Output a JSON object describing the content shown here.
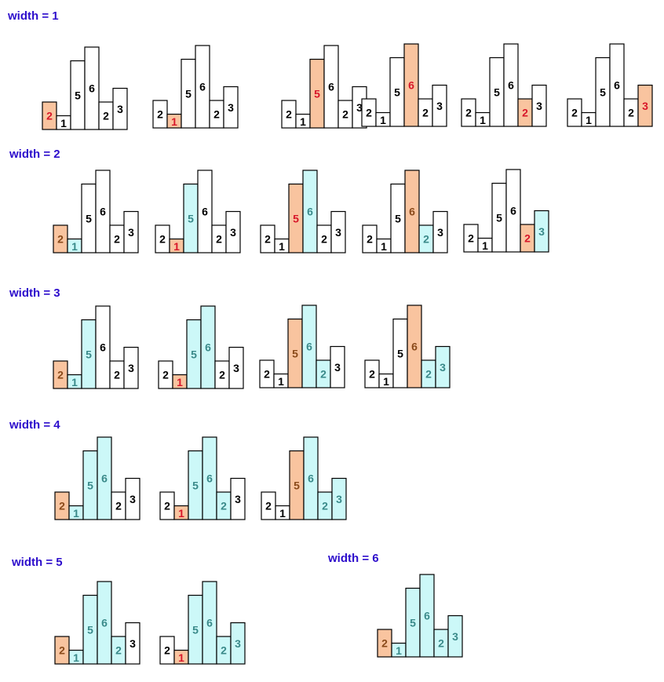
{
  "heights": [
    2,
    1,
    5,
    6,
    2,
    3
  ],
  "colors": {
    "label": "#2d0ecc",
    "outline": "#000000",
    "plain_fill": "#ffffff",
    "plain_text": "#000000",
    "min_fill": "#f9c49f",
    "window_fill": "#ccf8f8",
    "window_text": "#3a8a8a",
    "min_text_red": "#d8172a",
    "min_text_brown": "#8a4a1a"
  },
  "rows": [
    {
      "label": "width = 1",
      "diagrams": [
        {
          "window": [
            0
          ],
          "min": 0,
          "min_text": "red"
        },
        {
          "window": [
            1
          ],
          "min": 1,
          "min_text": "red"
        },
        {
          "window": [
            2
          ],
          "min": 2,
          "min_text": "red"
        },
        {
          "window": [
            3
          ],
          "min": 3,
          "min_text": "red"
        },
        {
          "window": [
            4
          ],
          "min": 4,
          "min_text": "red"
        },
        {
          "window": [
            5
          ],
          "min": 5,
          "min_text": "red"
        }
      ]
    },
    {
      "label": "width = 2",
      "diagrams": [
        {
          "window": [
            0,
            1
          ],
          "min": 0,
          "min_text": "brown"
        },
        {
          "window": [
            1,
            2
          ],
          "min": 1,
          "min_text": "red"
        },
        {
          "window": [
            2,
            3
          ],
          "min": 2,
          "min_text": "red"
        },
        {
          "window": [
            3,
            4
          ],
          "min": 3,
          "min_text": "brown"
        },
        {
          "window": [
            4,
            5
          ],
          "min": 4,
          "min_text": "red"
        }
      ]
    },
    {
      "label": "width = 3",
      "diagrams": [
        {
          "window": [
            0,
            1,
            2
          ],
          "min": 0,
          "min_text": "brown"
        },
        {
          "window": [
            1,
            2,
            3
          ],
          "min": 1,
          "min_text": "red"
        },
        {
          "window": [
            2,
            3,
            4
          ],
          "min": 2,
          "min_text": "brown"
        },
        {
          "window": [
            3,
            4,
            5
          ],
          "min": 3,
          "min_text": "brown"
        }
      ]
    },
    {
      "label": "width = 4",
      "diagrams": [
        {
          "window": [
            0,
            1,
            2,
            3
          ],
          "min": 0,
          "min_text": "brown"
        },
        {
          "window": [
            1,
            2,
            3,
            4
          ],
          "min": 1,
          "min_text": "red"
        },
        {
          "window": [
            2,
            3,
            4,
            5
          ],
          "min": 2,
          "min_text": "brown"
        }
      ]
    },
    {
      "label": "width = 5",
      "diagrams": [
        {
          "window": [
            0,
            1,
            2,
            3,
            4
          ],
          "min": 0,
          "min_text": "brown"
        },
        {
          "window": [
            1,
            2,
            3,
            4,
            5
          ],
          "min": 1,
          "min_text": "red"
        }
      ]
    },
    {
      "label": "width = 6",
      "diagrams": [
        {
          "window": [
            0,
            1,
            2,
            3,
            4,
            5
          ],
          "min": 0,
          "min_text": "brown"
        }
      ]
    }
  ]
}
